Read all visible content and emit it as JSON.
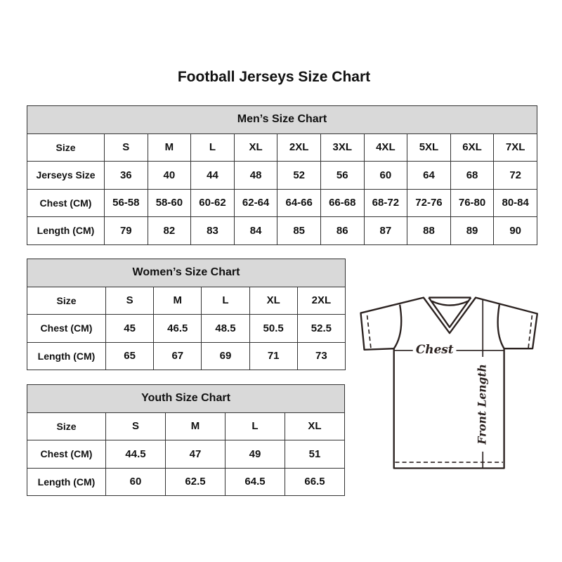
{
  "title": "Football Jerseys Size Chart",
  "mens": {
    "caption": "Men’s Size Chart",
    "rows": [
      [
        "Size",
        "S",
        "M",
        "L",
        "XL",
        "2XL",
        "3XL",
        "4XL",
        "5XL",
        "6XL",
        "7XL"
      ],
      [
        "Jerseys Size",
        "36",
        "40",
        "44",
        "48",
        "52",
        "56",
        "60",
        "64",
        "68",
        "72"
      ],
      [
        "Chest (CM)",
        "56-58",
        "58-60",
        "60-62",
        "62-64",
        "64-66",
        "66-68",
        "68-72",
        "72-76",
        "76-80",
        "80-84"
      ],
      [
        "Length (CM)",
        "79",
        "82",
        "83",
        "84",
        "85",
        "86",
        "87",
        "88",
        "89",
        "90"
      ]
    ]
  },
  "womens": {
    "caption": "Women’s Size Chart",
    "rows": [
      [
        "Size",
        "S",
        "M",
        "L",
        "XL",
        "2XL"
      ],
      [
        "Chest (CM)",
        "45",
        "46.5",
        "48.5",
        "50.5",
        "52.5"
      ],
      [
        "Length (CM)",
        "65",
        "67",
        "69",
        "71",
        "73"
      ]
    ]
  },
  "youth": {
    "caption": "Youth Size Chart",
    "rows": [
      [
        "Size",
        "S",
        "M",
        "L",
        "XL"
      ],
      [
        "Chest (CM)",
        "44.5",
        "47",
        "49",
        "51"
      ],
      [
        "Length (CM)",
        "60",
        "62.5",
        "64.5",
        "66.5"
      ]
    ]
  },
  "diagram": {
    "chest_label": "Chest",
    "length_label": "Front Length"
  }
}
